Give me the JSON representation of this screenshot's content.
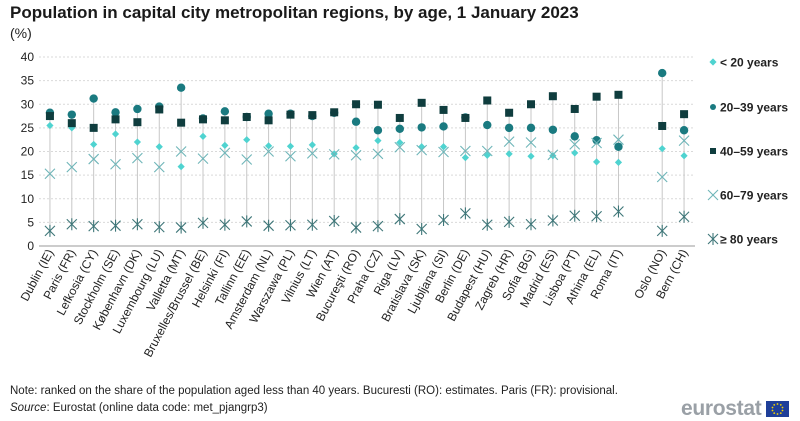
{
  "chart_data": {
    "type": "scatter",
    "title": "Population in capital city metropolitan regions, by age, 1 January 2023",
    "unit": "(%)",
    "ylim": [
      0,
      40
    ],
    "yticks": [
      0,
      5,
      10,
      15,
      20,
      25,
      30,
      35,
      40
    ],
    "grid": true,
    "legend_position": "right",
    "categories": [
      "Dublin (IE)",
      "Paris (FR)",
      "Lefkosia (CY)",
      "Stockholm (SE)",
      "København (DK)",
      "Luxembourg (LU)",
      "Valletta (MT)",
      "Bruxelles/Brussel (BE)",
      "Helsinki (FI)",
      "Tallinn (EE)",
      "Amsterdam (NL)",
      "Warszawa (PL)",
      "Vilnius (LT)",
      "Wien (AT)",
      "Bucureşti (RO)",
      "Praha (CZ)",
      "Riga (LV)",
      "Bratislava (SK)",
      "Ljubljana (SI)",
      "Berlin (DE)",
      "Budapest (HU)",
      "Zagreb (HR)",
      "Sofia (BG)",
      "Madrid (ES)",
      "Lisboa (PT)",
      "Athina (EL)",
      "Roma (IT)",
      "",
      "Oslo (NO)",
      "Bern (CH)"
    ],
    "series": [
      {
        "name": "< 20 years",
        "color": "#4fd3d0",
        "marker": "diamond",
        "values": [
          25.5,
          25.0,
          21.5,
          23.7,
          22.0,
          21.0,
          16.8,
          23.2,
          21.3,
          22.5,
          21.2,
          21.1,
          21.4,
          19.5,
          20.8,
          22.3,
          21.9,
          21.0,
          21.0,
          18.7,
          19.2,
          19.5,
          19.0,
          19.1,
          19.7,
          17.8,
          17.7,
          null,
          20.6,
          19.1
        ]
      },
      {
        "name": "20–39 years",
        "color": "#1a7a80",
        "marker": "circle",
        "values": [
          28.2,
          27.8,
          31.2,
          28.3,
          29.0,
          29.5,
          33.5,
          27.0,
          28.5,
          27.3,
          28.0,
          28.0,
          27.5,
          28.2,
          26.3,
          24.5,
          24.8,
          25.1,
          25.3,
          27.2,
          25.6,
          25.0,
          25.0,
          24.6,
          23.2,
          22.4,
          21.0,
          null,
          36.6,
          24.5
        ]
      },
      {
        "name": "40–59 years",
        "color": "#0f3d3e",
        "marker": "square",
        "values": [
          27.5,
          26.0,
          25.0,
          26.8,
          26.2,
          28.9,
          26.1,
          26.8,
          26.6,
          27.3,
          26.6,
          27.8,
          27.7,
          28.3,
          30.0,
          29.9,
          27.1,
          30.3,
          28.8,
          27.1,
          30.8,
          28.2,
          30.0,
          31.7,
          29.0,
          31.6,
          32.0,
          null,
          25.4,
          27.9
        ]
      },
      {
        "name": "60–79 years",
        "color": "#6eb5b8",
        "marker": "x",
        "values": [
          15.3,
          16.7,
          18.4,
          17.3,
          18.6,
          16.7,
          20.0,
          18.5,
          19.7,
          18.3,
          20.0,
          19.0,
          19.6,
          19.4,
          19.2,
          19.5,
          20.9,
          20.3,
          19.9,
          20.1,
          20.1,
          22.1,
          21.9,
          19.3,
          21.5,
          21.8,
          22.5,
          null,
          14.6,
          22.3
        ]
      },
      {
        "name": "≥ 80 years",
        "color": "#3e7678",
        "marker": "asterisk",
        "values": [
          3.2,
          4.6,
          4.2,
          4.3,
          4.6,
          4.0,
          3.9,
          4.9,
          4.5,
          5.2,
          4.3,
          4.4,
          4.5,
          5.3,
          3.9,
          4.2,
          5.7,
          3.6,
          5.5,
          6.9,
          4.5,
          5.1,
          4.6,
          5.4,
          6.4,
          6.3,
          7.3,
          null,
          3.2,
          6.2
        ]
      }
    ]
  },
  "note": "Note: ranked on the share of the population aged less than 40 years. Bucuresti (RO): estimates. Paris (FR): provisional.",
  "source_label": "Source",
  "source_text": ": Eurostat (online data code: met_pjangrp3)",
  "logo_text": "eurostat"
}
